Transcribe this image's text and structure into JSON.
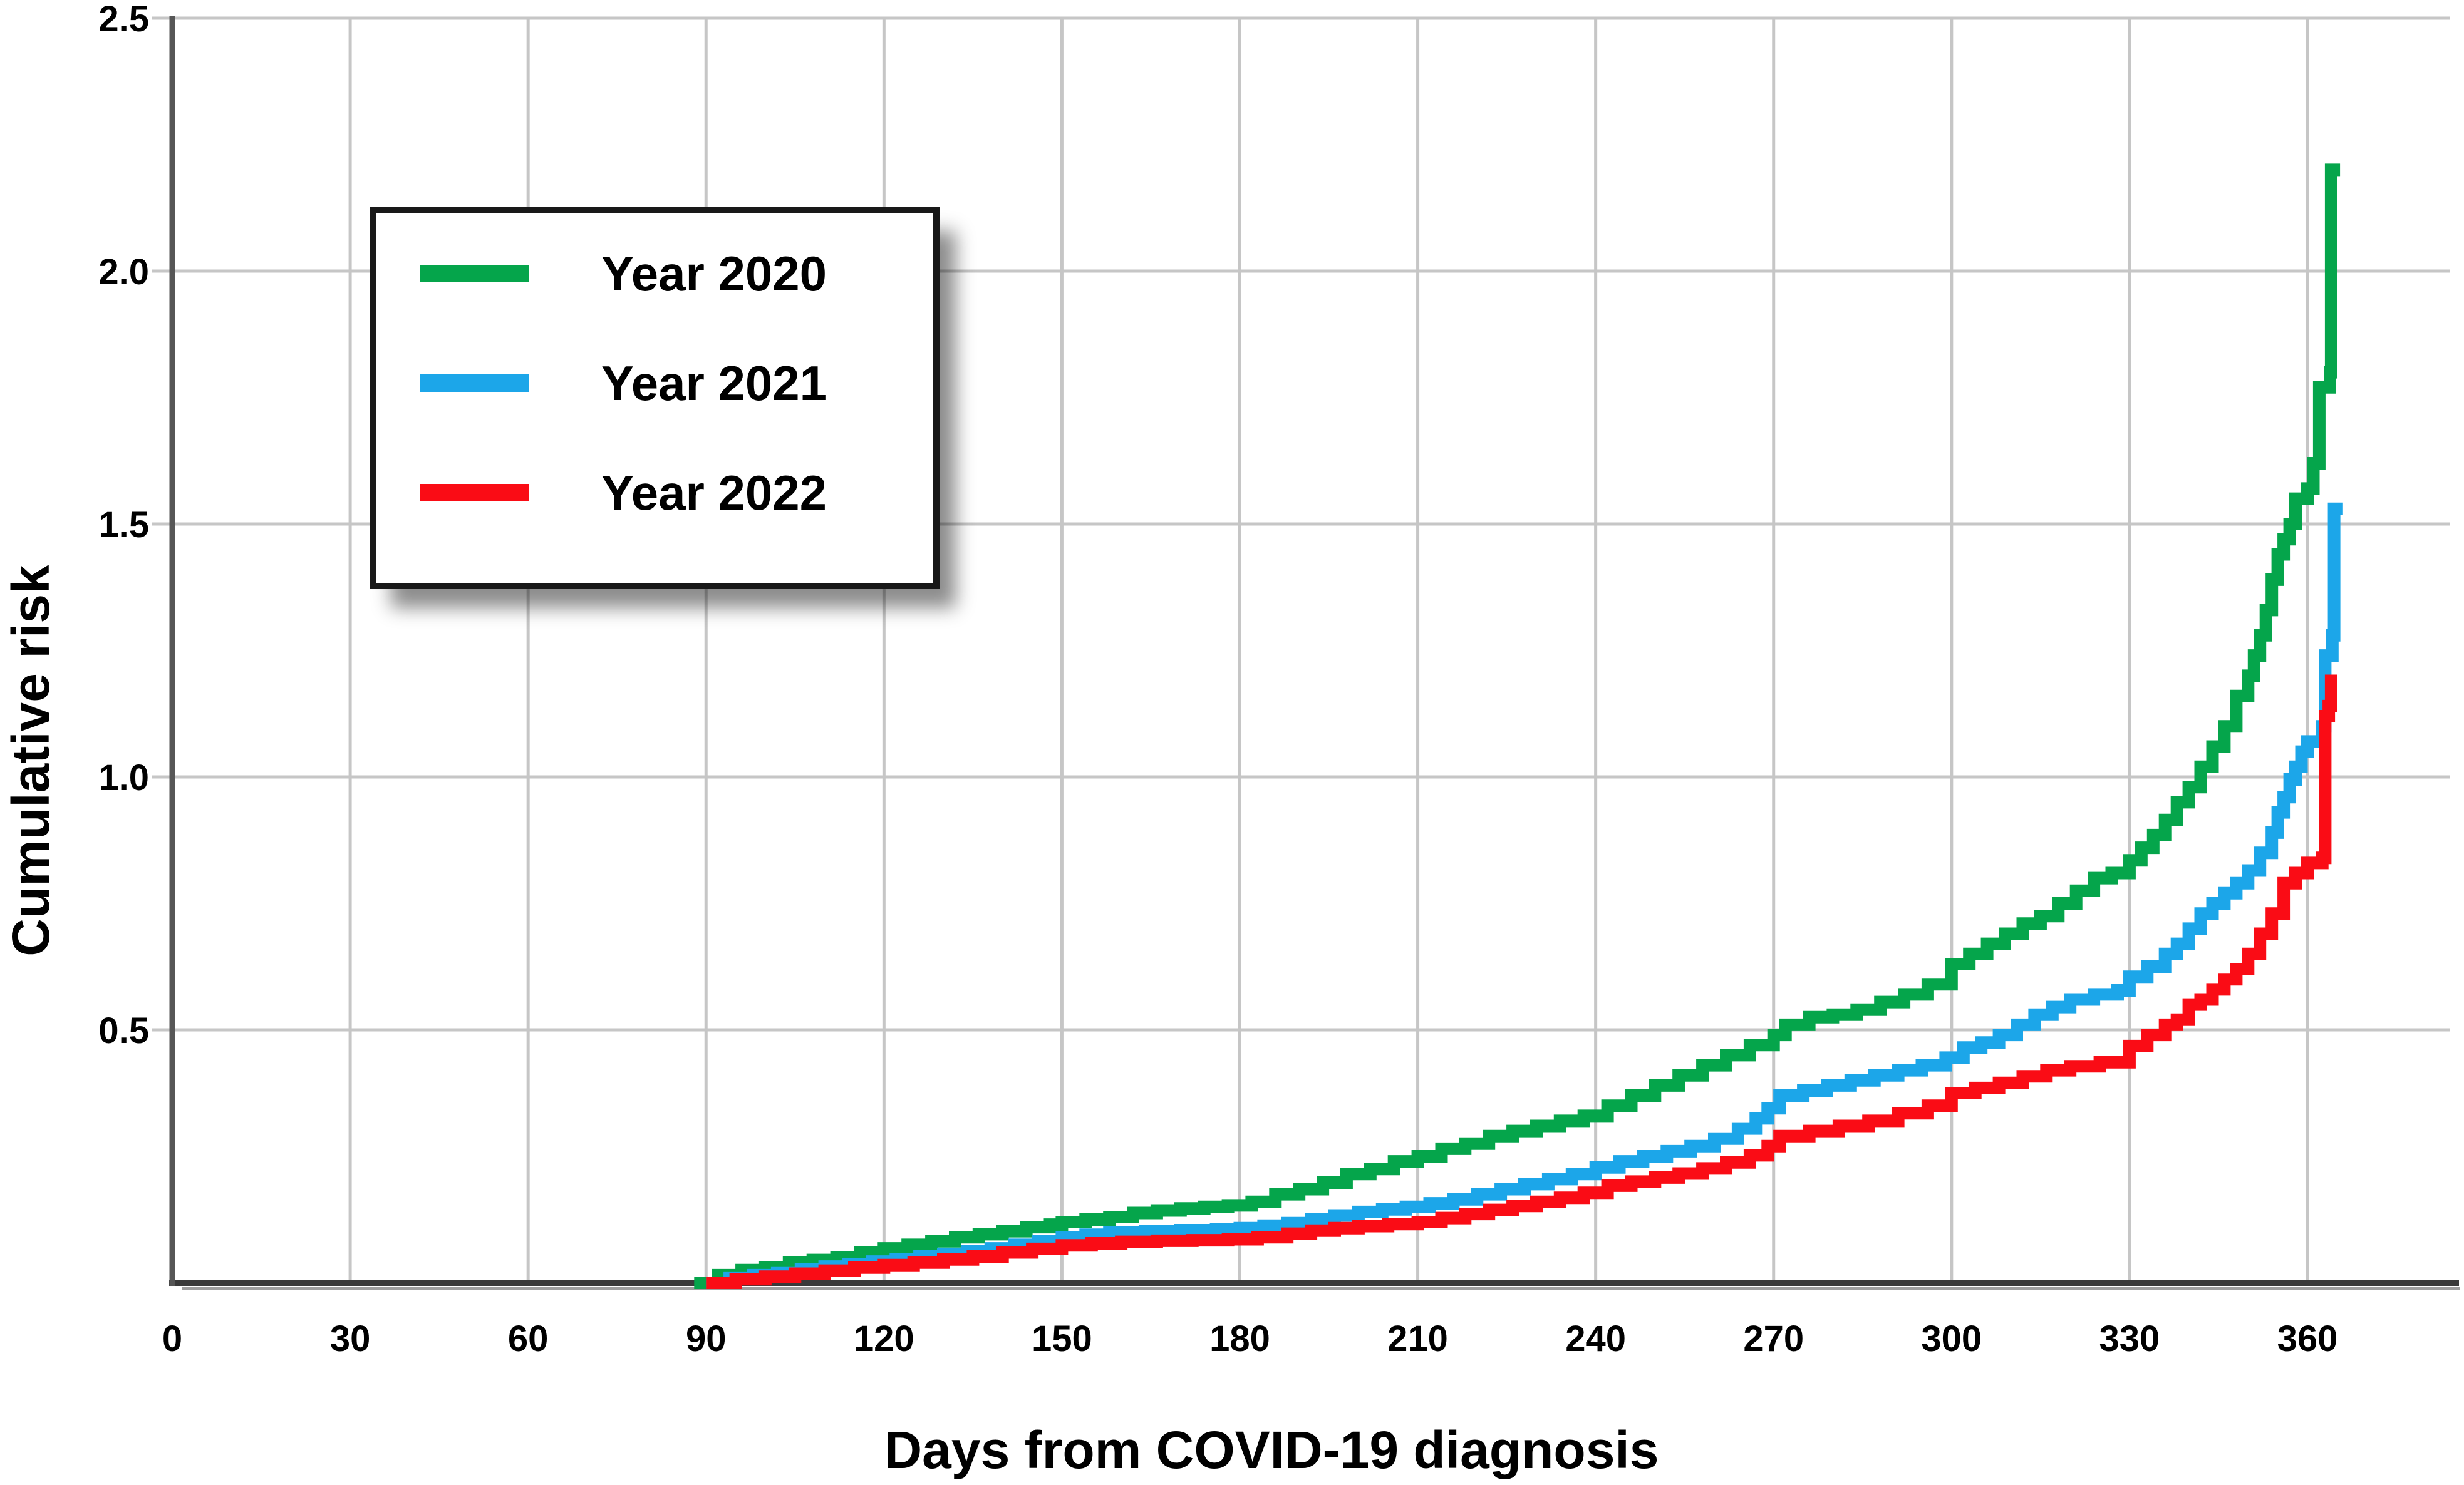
{
  "figure": {
    "background": "#ffffff"
  },
  "chart_data": {
    "type": "line",
    "subtype": "step-cumulative-incidence",
    "title": "",
    "xlabel": "Days from COVID-19 diagnosis",
    "ylabel": "Cumulative risk",
    "x_ticks": [
      0,
      30,
      60,
      90,
      120,
      150,
      180,
      210,
      240,
      270,
      300,
      330,
      360
    ],
    "x_tick_labels": [
      "0",
      "30",
      "60",
      "90",
      "120",
      "150",
      "180",
      "210",
      "240",
      "270",
      "300",
      "330",
      "360"
    ],
    "y_ticks": [
      0.5,
      1.0,
      1.5,
      2.0,
      2.5
    ],
    "y_tick_labels": [
      "0.5",
      "1.0",
      "1.5",
      "2.0",
      "2.5"
    ],
    "xlim": [
      0,
      385
    ],
    "ylim": [
      0,
      2.5
    ],
    "grid": true,
    "grid_color": "#c6c6c6",
    "axis_color": "#3a3a3a",
    "legend": {
      "position": "upper-left",
      "border_color": "#181818",
      "background": "#ffffff"
    },
    "series": [
      {
        "name": "Year 2020",
        "color": "#05a54b",
        "points": [
          [
            88,
            0
          ],
          [
            92,
            0.015
          ],
          [
            96,
            0.025
          ],
          [
            100,
            0.03
          ],
          [
            104,
            0.04
          ],
          [
            108,
            0.045
          ],
          [
            112,
            0.05
          ],
          [
            116,
            0.06
          ],
          [
            120,
            0.068
          ],
          [
            124,
            0.075
          ],
          [
            128,
            0.082
          ],
          [
            132,
            0.09
          ],
          [
            136,
            0.096
          ],
          [
            140,
            0.102
          ],
          [
            144,
            0.11
          ],
          [
            148,
            0.115
          ],
          [
            150,
            0.12
          ],
          [
            154,
            0.125
          ],
          [
            158,
            0.13
          ],
          [
            162,
            0.138
          ],
          [
            166,
            0.143
          ],
          [
            170,
            0.147
          ],
          [
            174,
            0.15
          ],
          [
            178,
            0.153
          ],
          [
            182,
            0.16
          ],
          [
            186,
            0.175
          ],
          [
            190,
            0.185
          ],
          [
            194,
            0.198
          ],
          [
            198,
            0.215
          ],
          [
            202,
            0.225
          ],
          [
            206,
            0.24
          ],
          [
            210,
            0.25
          ],
          [
            214,
            0.265
          ],
          [
            218,
            0.275
          ],
          [
            222,
            0.29
          ],
          [
            226,
            0.3
          ],
          [
            230,
            0.31
          ],
          [
            234,
            0.32
          ],
          [
            238,
            0.33
          ],
          [
            242,
            0.35
          ],
          [
            246,
            0.37
          ],
          [
            250,
            0.39
          ],
          [
            254,
            0.41
          ],
          [
            258,
            0.43
          ],
          [
            262,
            0.45
          ],
          [
            266,
            0.47
          ],
          [
            270,
            0.49
          ],
          [
            272,
            0.51
          ],
          [
            276,
            0.525
          ],
          [
            280,
            0.53
          ],
          [
            284,
            0.54
          ],
          [
            288,
            0.555
          ],
          [
            292,
            0.57
          ],
          [
            296,
            0.59
          ],
          [
            300,
            0.63
          ],
          [
            303,
            0.65
          ],
          [
            306,
            0.67
          ],
          [
            309,
            0.69
          ],
          [
            312,
            0.71
          ],
          [
            315,
            0.725
          ],
          [
            318,
            0.75
          ],
          [
            321,
            0.775
          ],
          [
            324,
            0.8
          ],
          [
            327,
            0.81
          ],
          [
            330,
            0.835
          ],
          [
            332,
            0.86
          ],
          [
            334,
            0.885
          ],
          [
            336,
            0.915
          ],
          [
            338,
            0.95
          ],
          [
            340,
            0.98
          ],
          [
            342,
            1.02
          ],
          [
            344,
            1.06
          ],
          [
            346,
            1.1
          ],
          [
            348,
            1.16
          ],
          [
            350,
            1.2
          ],
          [
            351,
            1.24
          ],
          [
            352,
            1.28
          ],
          [
            353,
            1.33
          ],
          [
            354,
            1.39
          ],
          [
            355,
            1.44
          ],
          [
            356,
            1.47
          ],
          [
            357,
            1.5
          ],
          [
            358,
            1.55
          ],
          [
            360,
            1.57
          ],
          [
            361,
            1.62
          ],
          [
            362,
            1.77
          ],
          [
            363.8,
            1.8
          ],
          [
            364,
            2.2
          ],
          [
            365.5,
            2.2
          ]
        ]
      },
      {
        "name": "Year 2021",
        "color": "#1ca6e9",
        "points": [
          [
            90,
            0
          ],
          [
            94,
            0.01
          ],
          [
            98,
            0.015
          ],
          [
            102,
            0.02
          ],
          [
            106,
            0.027
          ],
          [
            110,
            0.032
          ],
          [
            114,
            0.037
          ],
          [
            118,
            0.042
          ],
          [
            122,
            0.047
          ],
          [
            126,
            0.052
          ],
          [
            130,
            0.057
          ],
          [
            134,
            0.062
          ],
          [
            138,
            0.068
          ],
          [
            142,
            0.075
          ],
          [
            146,
            0.082
          ],
          [
            150,
            0.09
          ],
          [
            154,
            0.095
          ],
          [
            158,
            0.099
          ],
          [
            164,
            0.102
          ],
          [
            170,
            0.104
          ],
          [
            176,
            0.106
          ],
          [
            180,
            0.108
          ],
          [
            184,
            0.113
          ],
          [
            188,
            0.118
          ],
          [
            192,
            0.125
          ],
          [
            196,
            0.133
          ],
          [
            200,
            0.14
          ],
          [
            204,
            0.145
          ],
          [
            208,
            0.15
          ],
          [
            212,
            0.157
          ],
          [
            216,
            0.165
          ],
          [
            220,
            0.175
          ],
          [
            224,
            0.185
          ],
          [
            228,
            0.195
          ],
          [
            232,
            0.205
          ],
          [
            236,
            0.215
          ],
          [
            240,
            0.228
          ],
          [
            244,
            0.24
          ],
          [
            248,
            0.25
          ],
          [
            252,
            0.26
          ],
          [
            256,
            0.27
          ],
          [
            260,
            0.285
          ],
          [
            264,
            0.305
          ],
          [
            267,
            0.325
          ],
          [
            269,
            0.345
          ],
          [
            271,
            0.37
          ],
          [
            275,
            0.38
          ],
          [
            279,
            0.39
          ],
          [
            283,
            0.4
          ],
          [
            287,
            0.41
          ],
          [
            291,
            0.42
          ],
          [
            295,
            0.43
          ],
          [
            299,
            0.445
          ],
          [
            302,
            0.465
          ],
          [
            305,
            0.475
          ],
          [
            308,
            0.49
          ],
          [
            311,
            0.51
          ],
          [
            314,
            0.53
          ],
          [
            317,
            0.545
          ],
          [
            320,
            0.56
          ],
          [
            324,
            0.57
          ],
          [
            328,
            0.578
          ],
          [
            330,
            0.605
          ],
          [
            333,
            0.625
          ],
          [
            336,
            0.65
          ],
          [
            338,
            0.67
          ],
          [
            340,
            0.7
          ],
          [
            342,
            0.73
          ],
          [
            344,
            0.75
          ],
          [
            346,
            0.77
          ],
          [
            348,
            0.79
          ],
          [
            350,
            0.815
          ],
          [
            352,
            0.85
          ],
          [
            354,
            0.89
          ],
          [
            355,
            0.93
          ],
          [
            356,
            0.96
          ],
          [
            357,
            0.995
          ],
          [
            358,
            1.02
          ],
          [
            359,
            1.05
          ],
          [
            360,
            1.07
          ],
          [
            362.5,
            1.1
          ],
          [
            363,
            1.24
          ],
          [
            364.2,
            1.28
          ],
          [
            364.5,
            1.53
          ],
          [
            366,
            1.53
          ]
        ]
      },
      {
        "name": "Year 2022",
        "color": "#fa0c15",
        "points": [
          [
            90,
            0
          ],
          [
            95,
            0.007
          ],
          [
            100,
            0.012
          ],
          [
            105,
            0.018
          ],
          [
            110,
            0.024
          ],
          [
            115,
            0.03
          ],
          [
            120,
            0.035
          ],
          [
            125,
            0.04
          ],
          [
            130,
            0.046
          ],
          [
            135,
            0.052
          ],
          [
            140,
            0.06
          ],
          [
            145,
            0.067
          ],
          [
            150,
            0.074
          ],
          [
            155,
            0.078
          ],
          [
            160,
            0.081
          ],
          [
            166,
            0.083
          ],
          [
            172,
            0.084
          ],
          [
            178,
            0.086
          ],
          [
            183,
            0.09
          ],
          [
            188,
            0.097
          ],
          [
            192,
            0.103
          ],
          [
            196,
            0.108
          ],
          [
            200,
            0.112
          ],
          [
            205,
            0.116
          ],
          [
            210,
            0.12
          ],
          [
            214,
            0.128
          ],
          [
            218,
            0.136
          ],
          [
            222,
            0.144
          ],
          [
            226,
            0.152
          ],
          [
            230,
            0.16
          ],
          [
            234,
            0.168
          ],
          [
            238,
            0.178
          ],
          [
            242,
            0.192
          ],
          [
            246,
            0.2
          ],
          [
            250,
            0.208
          ],
          [
            254,
            0.216
          ],
          [
            258,
            0.226
          ],
          [
            262,
            0.238
          ],
          [
            266,
            0.252
          ],
          [
            269,
            0.27
          ],
          [
            271,
            0.29
          ],
          [
            276,
            0.3
          ],
          [
            281,
            0.31
          ],
          [
            286,
            0.32
          ],
          [
            291,
            0.335
          ],
          [
            296,
            0.35
          ],
          [
            300,
            0.375
          ],
          [
            304,
            0.385
          ],
          [
            308,
            0.395
          ],
          [
            312,
            0.408
          ],
          [
            316,
            0.42
          ],
          [
            320,
            0.428
          ],
          [
            325,
            0.436
          ],
          [
            330,
            0.468
          ],
          [
            333,
            0.49
          ],
          [
            336,
            0.51
          ],
          [
            338,
            0.52
          ],
          [
            340,
            0.55
          ],
          [
            342,
            0.56
          ],
          [
            344,
            0.58
          ],
          [
            346,
            0.6
          ],
          [
            348,
            0.62
          ],
          [
            350,
            0.65
          ],
          [
            352,
            0.69
          ],
          [
            354,
            0.73
          ],
          [
            356,
            0.79
          ],
          [
            358,
            0.81
          ],
          [
            360,
            0.83
          ],
          [
            362.5,
            0.84
          ],
          [
            363,
            1.12
          ],
          [
            363.6,
            1.14
          ],
          [
            364,
            1.19
          ],
          [
            365,
            1.19
          ]
        ]
      }
    ]
  }
}
